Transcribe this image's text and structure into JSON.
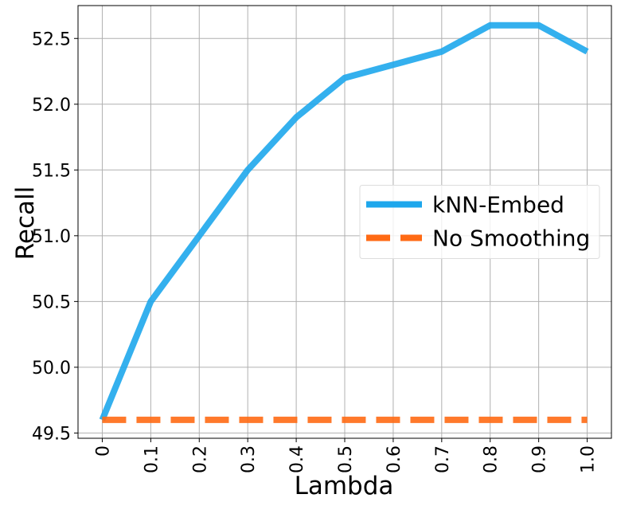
{
  "chart_data": {
    "type": "line",
    "x_label": "Lambda",
    "y_label": "Recall",
    "x": [
      0,
      0.1,
      0.2,
      0.3,
      0.4,
      0.5,
      0.6,
      0.7,
      0.8,
      0.9,
      1
    ],
    "series": [
      {
        "name": "kNN-Embed",
        "color": "#1ea7ec",
        "style": "solid",
        "values": [
          49.6,
          50.5,
          51.0,
          51.5,
          51.9,
          52.2,
          52.3,
          52.4,
          52.6,
          52.6,
          52.4
        ]
      },
      {
        "name": "No Smoothing",
        "color": "#ff6a14",
        "style": "dashed",
        "values": [
          49.6,
          49.6,
          49.6,
          49.6,
          49.6,
          49.6,
          49.6,
          49.6,
          49.6,
          49.6,
          49.6
        ]
      }
    ],
    "xlim": [
      -0.05,
      1.05
    ],
    "ylim": [
      49.46,
      52.75
    ],
    "xticks": [
      0,
      0.1,
      0.2,
      0.3,
      0.4,
      0.5,
      0.6,
      0.7,
      0.8,
      0.9,
      {
        "value": 1,
        "label": "1.0"
      }
    ],
    "yticks": [
      49.5,
      {
        "value": 50,
        "label": "50.0"
      },
      50.5,
      {
        "value": 51,
        "label": "51.0"
      },
      51.5,
      {
        "value": 52,
        "label": "52.0"
      },
      52.5
    ],
    "grid": true,
    "legend": "center right"
  }
}
